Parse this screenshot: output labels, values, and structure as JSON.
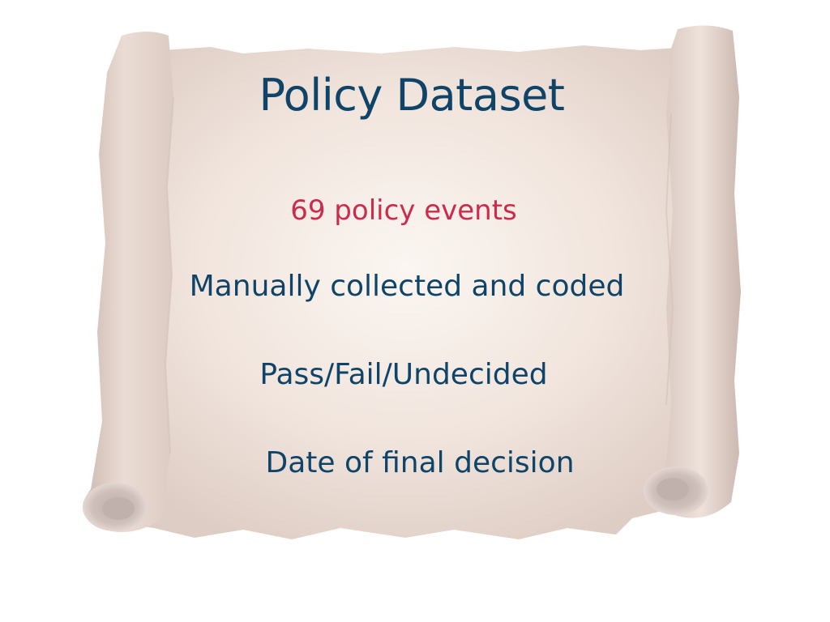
{
  "slide": {
    "title": "Policy Dataset",
    "highlight": "69 policy events",
    "bullets": [
      "Manually collected and coded",
      "Pass/Fail/Undecided",
      "Date of final decision"
    ]
  },
  "colors": {
    "title": "#0f4468",
    "highlight": "#cc2b4b",
    "parchment": "#efe3dc",
    "background": "#ffffff"
  },
  "icons": {
    "background_art": "parchment-scroll"
  }
}
